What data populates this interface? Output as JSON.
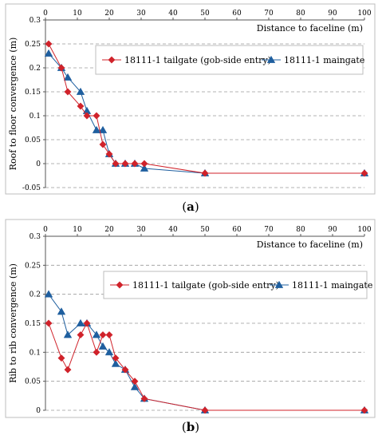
{
  "chart_data": [
    {
      "type": "line",
      "panel_label": "a",
      "xlabel": "Distance to faceline  (m)",
      "ylabel": "Roof  to floor convergence (m)",
      "xlim": [
        0,
        100
      ],
      "ylim": [
        -0.05,
        0.3
      ],
      "x_ticks": [
        0,
        10,
        20,
        30,
        40,
        50,
        60,
        70,
        80,
        90,
        100
      ],
      "y_ticks": [
        -0.05,
        0,
        0.05,
        0.1,
        0.15,
        0.2,
        0.25,
        0.3
      ],
      "x_tick_labels": [
        "0",
        "10",
        "20",
        "30",
        "40",
        "50",
        "60",
        "70",
        "80",
        "90",
        "100"
      ],
      "y_tick_labels": [
        "-0.05",
        "0",
        "0.05",
        "0.1",
        "0.15",
        "0.2",
        "0.25",
        "0.3"
      ],
      "x_axis_position": "top",
      "y_axis_inverted": true,
      "grid": "horizontal dashed",
      "legend_position": "upper-right",
      "series": [
        {
          "name": "18111-1 tailgate (gob-side entry)",
          "color": "#d0222a",
          "marker": "diamond",
          "points": [
            [
              1,
              0.25
            ],
            [
              5,
              0.2
            ],
            [
              7,
              0.15
            ],
            [
              11,
              0.12
            ],
            [
              13,
              0.1
            ],
            [
              16,
              0.1
            ],
            [
              18,
              0.04
            ],
            [
              20,
              0.02
            ],
            [
              22,
              0
            ],
            [
              25,
              0
            ],
            [
              28,
              0
            ],
            [
              31,
              0
            ],
            [
              50,
              -0.02
            ],
            [
              100,
              -0.02
            ]
          ]
        },
        {
          "name": "18111-1 maingate",
          "color": "#1f5f9f",
          "marker": "triangle",
          "points": [
            [
              1,
              0.23
            ],
            [
              5,
              0.2
            ],
            [
              7,
              0.18
            ],
            [
              11,
              0.15
            ],
            [
              13,
              0.11
            ],
            [
              16,
              0.07
            ],
            [
              18,
              0.07
            ],
            [
              20,
              0.02
            ],
            [
              22,
              0
            ],
            [
              25,
              0
            ],
            [
              28,
              0
            ],
            [
              31,
              -0.01
            ],
            [
              50,
              -0.02
            ],
            [
              100,
              -0.02
            ]
          ]
        }
      ]
    },
    {
      "type": "line",
      "panel_label": "b",
      "xlabel": "Distance to faceline  (m)",
      "ylabel": "Rib to rib convergence (m)",
      "xlim": [
        0,
        100
      ],
      "ylim": [
        0,
        0.3
      ],
      "x_ticks": [
        0,
        10,
        20,
        30,
        40,
        50,
        60,
        70,
        80,
        90,
        100
      ],
      "y_ticks": [
        0,
        0.05,
        0.1,
        0.15,
        0.2,
        0.25,
        0.3
      ],
      "x_tick_labels": [
        "0",
        "10",
        "20",
        "30",
        "40",
        "50",
        "60",
        "70",
        "80",
        "90",
        "100"
      ],
      "y_tick_labels": [
        "0",
        "0.05",
        "0.1",
        "0.15",
        "0.2",
        "0.25",
        "0.3"
      ],
      "x_axis_position": "top",
      "y_axis_inverted": true,
      "grid": "horizontal dashed",
      "legend_position": "middle-right",
      "series": [
        {
          "name": "18111-1 tailgate (gob-side entry)",
          "color": "#d0222a",
          "marker": "diamond",
          "points": [
            [
              1,
              0.15
            ],
            [
              5,
              0.09
            ],
            [
              7,
              0.07
            ],
            [
              11,
              0.13
            ],
            [
              13,
              0.15
            ],
            [
              16,
              0.1
            ],
            [
              18,
              0.13
            ],
            [
              20,
              0.13
            ],
            [
              22,
              0.09
            ],
            [
              25,
              0.07
            ],
            [
              28,
              0.05
            ],
            [
              31,
              0.02
            ],
            [
              50,
              0
            ],
            [
              100,
              0
            ]
          ]
        },
        {
          "name": "18111-1 maingate",
          "color": "#1f5f9f",
          "marker": "triangle",
          "points": [
            [
              1,
              0.2
            ],
            [
              5,
              0.17
            ],
            [
              7,
              0.13
            ],
            [
              11,
              0.15
            ],
            [
              13,
              0.15
            ],
            [
              16,
              0.13
            ],
            [
              18,
              0.11
            ],
            [
              20,
              0.1
            ],
            [
              22,
              0.08
            ],
            [
              25,
              0.07
            ],
            [
              28,
              0.04
            ],
            [
              31,
              0.02
            ],
            [
              50,
              0
            ],
            [
              100,
              0
            ]
          ]
        }
      ]
    }
  ]
}
